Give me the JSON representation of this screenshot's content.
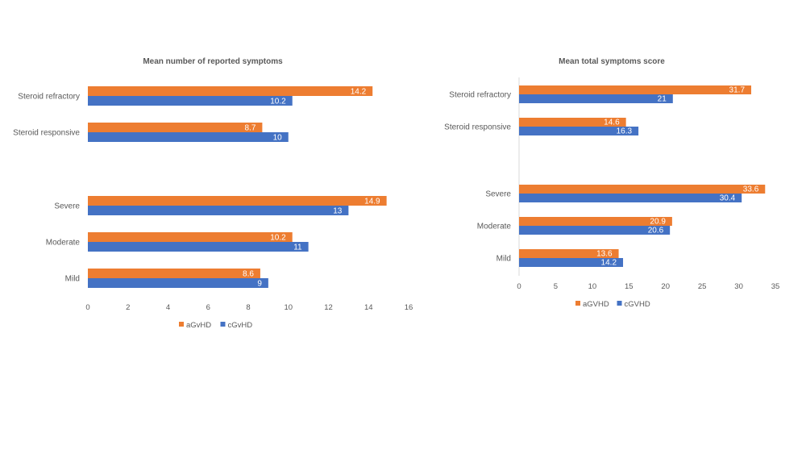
{
  "colors": {
    "series_a": "#ED7D31",
    "series_b": "#4472C4",
    "axis": "#D9D9D9"
  },
  "chart_data": [
    {
      "type": "bar",
      "orientation": "horizontal",
      "title": "Mean number of reported symptoms",
      "xlabel": "",
      "ylabel": "",
      "xlim": [
        0,
        16
      ],
      "xticks": [
        0,
        2,
        4,
        6,
        8,
        10,
        12,
        14,
        16
      ],
      "categories": [
        "Steroid refractory",
        "Steroid responsive",
        "",
        "Severe",
        "Moderate",
        "Mild"
      ],
      "series": [
        {
          "name": "aGvHD",
          "values": [
            14.2,
            8.7,
            null,
            14.9,
            10.2,
            8.6
          ]
        },
        {
          "name": "cGvHD",
          "values": [
            10.2,
            10,
            null,
            13,
            11,
            9
          ]
        }
      ],
      "legend": "bottom",
      "grid": false,
      "data_labels": true
    },
    {
      "type": "bar",
      "orientation": "horizontal",
      "title": "Mean total symptoms score",
      "xlabel": "",
      "ylabel": "",
      "xlim": [
        0,
        35
      ],
      "xticks": [
        0,
        5,
        10,
        15,
        20,
        25,
        30,
        35
      ],
      "categories": [
        "Steroid refractory",
        "Steroid responsive",
        "",
        "Severe",
        "Moderate",
        "Mild"
      ],
      "series": [
        {
          "name": "aGVHD",
          "values": [
            31.7,
            14.6,
            null,
            33.6,
            20.9,
            13.6
          ]
        },
        {
          "name": "cGVHD",
          "values": [
            21,
            16.3,
            null,
            30.4,
            20.6,
            14.2
          ]
        }
      ],
      "legend": "bottom",
      "grid": false,
      "data_labels": true
    }
  ]
}
